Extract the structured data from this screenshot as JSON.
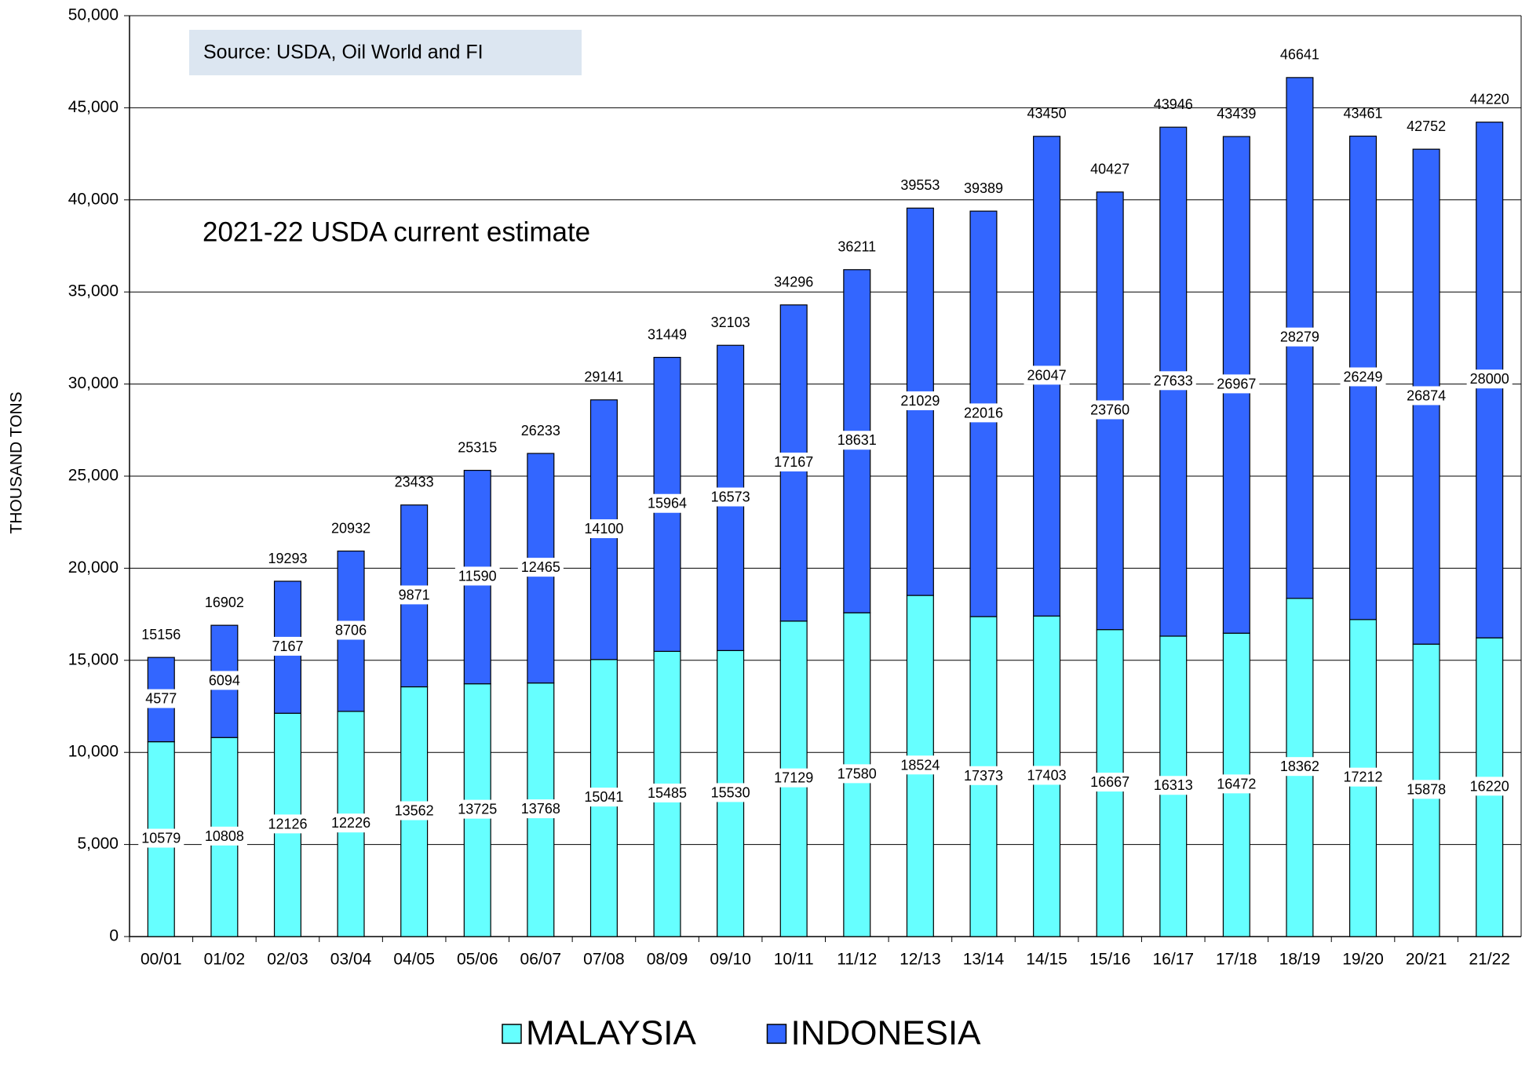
{
  "chart_data": {
    "type": "stacked_bar",
    "y_axis_label": "THOUSAND TONS",
    "annotations": [
      "Source: USDA, Oil World and FI",
      "2021-22 USDA current estimate"
    ],
    "categories": [
      "00/01",
      "01/02",
      "02/03",
      "03/04",
      "04/05",
      "05/06",
      "06/07",
      "07/08",
      "08/09",
      "09/10",
      "10/11",
      "11/12",
      "12/13",
      "13/14",
      "14/15",
      "15/16",
      "16/17",
      "17/18",
      "18/19",
      "19/20",
      "20/21",
      "21/22"
    ],
    "series": [
      {
        "name": "MALAYSIA",
        "color": "#66ffff",
        "values": [
          10579,
          10808,
          12126,
          12226,
          13562,
          13725,
          13768,
          15041,
          15485,
          15530,
          17129,
          17580,
          18524,
          17373,
          17403,
          16667,
          16313,
          16472,
          18362,
          17212,
          15878,
          16220
        ]
      },
      {
        "name": "INDONESIA",
        "color": "#3366ff",
        "values": [
          4577,
          6094,
          7167,
          8706,
          9871,
          11590,
          12465,
          14100,
          15964,
          16573,
          17167,
          18631,
          21029,
          22016,
          26047,
          23760,
          27633,
          26967,
          28279,
          26249,
          26874,
          28000
        ]
      }
    ],
    "totals": [
      15156,
      16902,
      19293,
      20932,
      23433,
      25315,
      26233,
      29141,
      31449,
      32103,
      34296,
      36211,
      39553,
      39389,
      43450,
      40427,
      43946,
      43439,
      46641,
      43461,
      42752,
      44220
    ],
    "ylim": [
      0,
      50000
    ],
    "yticks": [
      0,
      {
        "value": 5000,
        "label": "5,000"
      },
      {
        "value": 10000,
        "label": "10,000"
      },
      {
        "value": 15000,
        "label": "15,000"
      },
      {
        "value": 20000,
        "label": "20,000"
      },
      {
        "value": 25000,
        "label": "25,000"
      },
      {
        "value": 30000,
        "label": "30,000"
      },
      {
        "value": 35000,
        "label": "35,000"
      },
      {
        "value": 40000,
        "label": "40,000"
      },
      {
        "value": 45000,
        "label": "45,000"
      },
      {
        "value": 50000,
        "label": "50,000"
      }
    ],
    "grid": true,
    "legend": "bottom"
  }
}
